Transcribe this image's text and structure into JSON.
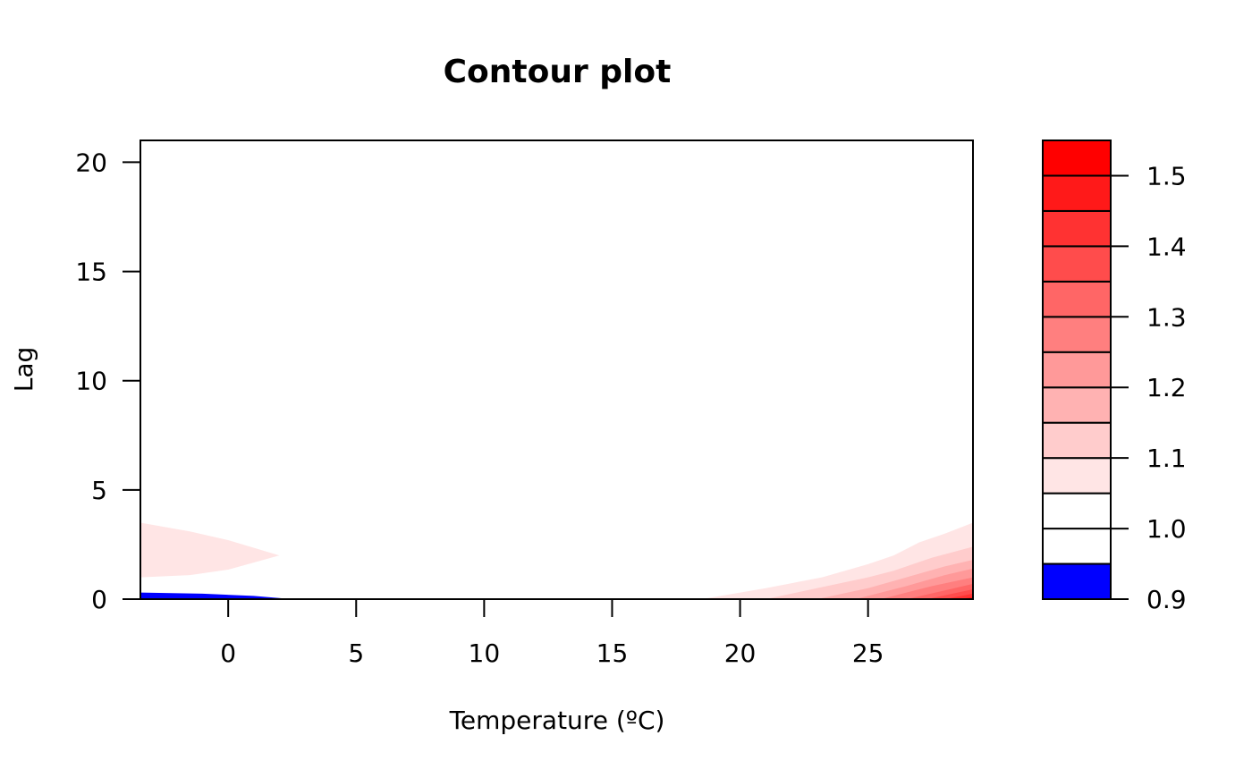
{
  "chart_data": {
    "type": "contour",
    "title": "Contour plot",
    "xlabel": "Temperature (ºC)",
    "ylabel": "Lag",
    "xlim": [
      -3.43,
      29.1
    ],
    "ylim": [
      0,
      21
    ],
    "xticks": [
      0,
      5,
      10,
      15,
      20,
      25
    ],
    "yticks": [
      0,
      5,
      10,
      15,
      20
    ],
    "grid": false,
    "legend": {
      "placement": "right",
      "levels": [
        0.9,
        0.95,
        1.0,
        1.05,
        1.1,
        1.15,
        1.2,
        1.25,
        1.3,
        1.35,
        1.4,
        1.45,
        1.5,
        1.55
      ],
      "colors": [
        "#0000FF",
        "#FFFFFF",
        "#FFFFFF",
        "#FFE5E5",
        "#FFCCCC",
        "#FFB2B2",
        "#FF9999",
        "#FF7F7F",
        "#FF6666",
        "#FF4C4C",
        "#FF3232",
        "#FF1919",
        "#FF0000"
      ],
      "ticks": [
        0.9,
        1.0,
        1.1,
        1.2,
        1.3,
        1.4,
        1.5
      ],
      "tick_labels": [
        "0.9",
        "1.0",
        "1.1",
        "1.2",
        "1.3",
        "1.4",
        "1.5"
      ]
    },
    "regions": [
      {
        "level_from": 0.9,
        "color": "#0000FF",
        "points": [
          [
            -3.43,
            0
          ],
          [
            -3.43,
            0.3
          ],
          [
            -1,
            0.25
          ],
          [
            1,
            0.15
          ],
          [
            2.5,
            0
          ],
          [
            -3.43,
            0
          ]
        ]
      },
      {
        "level_from": 1.05,
        "color": "#FFE5E5",
        "points": [
          [
            -3.43,
            1.0
          ],
          [
            -1.5,
            1.1
          ],
          [
            0,
            1.35
          ],
          [
            2,
            2.0
          ],
          [
            0,
            2.7
          ],
          [
            -1.5,
            3.1
          ],
          [
            -3.43,
            3.5
          ]
        ]
      },
      {
        "level_from": 1.05,
        "color": "#FFE5E5",
        "points": [
          [
            18.5,
            0
          ],
          [
            21,
            0.5
          ],
          [
            23.2,
            1.0
          ],
          [
            25,
            1.6
          ],
          [
            26,
            2.0
          ],
          [
            27,
            2.6
          ],
          [
            28,
            3.0
          ],
          [
            29.1,
            3.5
          ],
          [
            29.1,
            0
          ]
        ]
      },
      {
        "level_from": 1.1,
        "color": "#FFCCCC",
        "points": [
          [
            21,
            0
          ],
          [
            23,
            0.5
          ],
          [
            25,
            1.0
          ],
          [
            26,
            1.3
          ],
          [
            27.5,
            1.9
          ],
          [
            29.1,
            2.4
          ],
          [
            29.1,
            0
          ]
        ]
      },
      {
        "level_from": 1.15,
        "color": "#FFB2B2",
        "points": [
          [
            23,
            0
          ],
          [
            25,
            0.5
          ],
          [
            26.5,
            1.0
          ],
          [
            28,
            1.5
          ],
          [
            29.1,
            1.8
          ],
          [
            29.1,
            0
          ]
        ]
      },
      {
        "level_from": 1.2,
        "color": "#FF9999",
        "points": [
          [
            24.5,
            0
          ],
          [
            26.5,
            0.6
          ],
          [
            28,
            1.1
          ],
          [
            29.1,
            1.4
          ],
          [
            29.1,
            0
          ]
        ]
      },
      {
        "level_from": 1.25,
        "color": "#FF7F7F",
        "points": [
          [
            25.5,
            0
          ],
          [
            27.5,
            0.6
          ],
          [
            29.1,
            1.0
          ],
          [
            29.1,
            0
          ]
        ]
      },
      {
        "level_from": 1.3,
        "color": "#FF6666",
        "points": [
          [
            26.5,
            0
          ],
          [
            28,
            0.4
          ],
          [
            29.1,
            0.7
          ],
          [
            29.1,
            0
          ]
        ]
      },
      {
        "level_from": 1.35,
        "color": "#FF4C4C",
        "points": [
          [
            27.3,
            0
          ],
          [
            28.3,
            0.25
          ],
          [
            29.1,
            0.45
          ],
          [
            29.1,
            0
          ]
        ]
      },
      {
        "level_from": 1.4,
        "color": "#FF3232",
        "points": [
          [
            28,
            0
          ],
          [
            29.1,
            0.25
          ],
          [
            29.1,
            0
          ]
        ]
      },
      {
        "level_from": 1.45,
        "color": "#FF1919",
        "points": [
          [
            28.6,
            0
          ],
          [
            29.1,
            0.1
          ],
          [
            29.1,
            0
          ]
        ]
      }
    ]
  }
}
